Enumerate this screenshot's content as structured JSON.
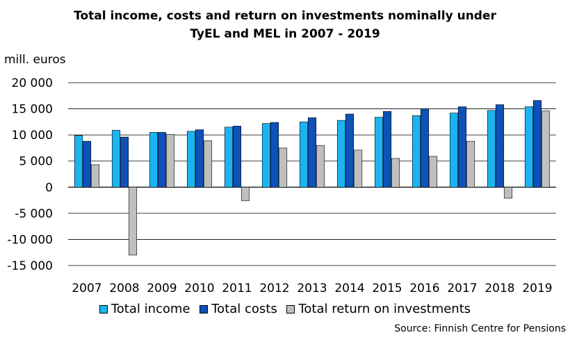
{
  "chart_data": {
    "type": "bar",
    "title_lines": [
      "Total income, costs and return on investments nominally under",
      "TyEL and MEL in 2007 - 2019"
    ],
    "ylabel": "mill. euros",
    "xlabel": "",
    "ylim": [
      -15000,
      20000
    ],
    "yticks": [
      20000,
      15000,
      10000,
      5000,
      0,
      -5000,
      -10000,
      -15000
    ],
    "ytick_labels": [
      "20 000",
      "15 000",
      "10 000",
      "5 000",
      "0",
      "-5 000",
      "-10 000",
      "-15 000"
    ],
    "grid": true,
    "legend_position": "bottom",
    "categories": [
      "2007",
      "2008",
      "2009",
      "2010",
      "2011",
      "2012",
      "2013",
      "2014",
      "2015",
      "2016",
      "2017",
      "2018",
      "2019"
    ],
    "series": [
      {
        "name": "Total income",
        "color": "#1CB4F0",
        "values": [
          9900,
          10900,
          10500,
          10700,
          11500,
          12200,
          12500,
          12800,
          13400,
          13700,
          14200,
          14700,
          15400
        ]
      },
      {
        "name": "Total costs",
        "color": "#0E52B7",
        "values": [
          8800,
          9600,
          10500,
          11000,
          11700,
          12400,
          13300,
          14000,
          14500,
          15000,
          15400,
          15800,
          16600
        ]
      },
      {
        "name": "Total return on investments",
        "color": "#BFBFBF",
        "values": [
          4300,
          -13000,
          10100,
          8900,
          -2600,
          7500,
          8000,
          7100,
          5500,
          5900,
          8800,
          -2100,
          14600
        ]
      }
    ],
    "source": "Source: Finnish Centre for Pensions"
  }
}
